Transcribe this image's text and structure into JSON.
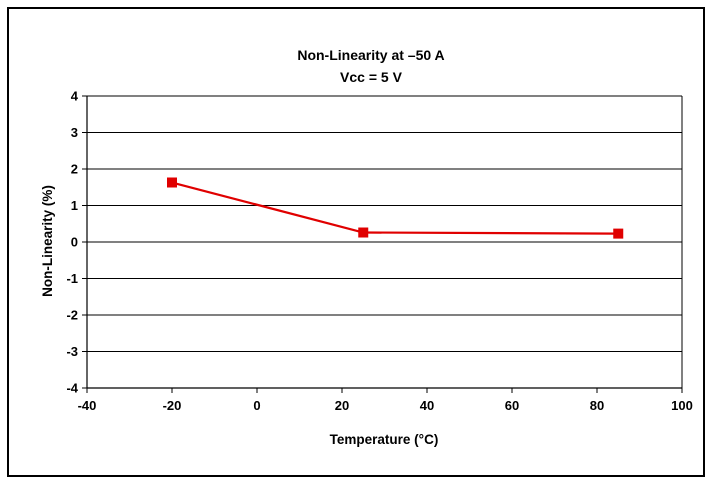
{
  "chart_data": {
    "type": "line",
    "title": "Non-Linearity at –50 A",
    "subtitle": "Vcc = 5 V",
    "xlabel": "Temperature (°C)",
    "ylabel": "Non-Linearity (%)",
    "xlim": [
      -40,
      100
    ],
    "ylim": [
      -4,
      4
    ],
    "x_ticks": [
      "-40",
      "-20",
      "0",
      "20",
      "40",
      "60",
      "80",
      "100"
    ],
    "y_ticks": [
      "4",
      "3",
      "2",
      "1",
      "0",
      "-1",
      "-2",
      "-3",
      "-4"
    ],
    "grid": "horizontal",
    "series": [
      {
        "x": [
          -20,
          25,
          85
        ],
        "y": [
          1.63,
          0.26,
          0.23
        ],
        "color": "#e00000",
        "marker": "square"
      }
    ]
  }
}
